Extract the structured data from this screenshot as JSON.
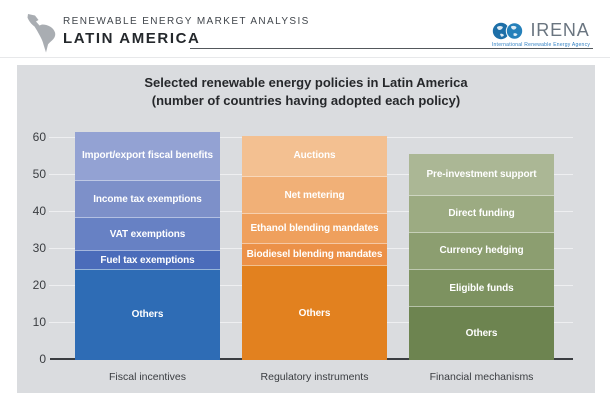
{
  "header": {
    "kicker": "RENEWABLE ENERGY MARKET ANALYSIS",
    "title": "LATIN AMERICA",
    "map_icon": "latin-america-map-icon",
    "logo": {
      "icon": "irena-globes-icon",
      "name": "IRENA",
      "tagline": "International Renewable Energy Agency"
    }
  },
  "colors": {
    "panel_bg": "#dadcdf",
    "axis": "#3a3d41",
    "header_rule": "#54585c",
    "logo_blue": "#1d6fa8",
    "logo_text": "#6a7580",
    "tagline_blue": "#2d7ec2",
    "map_gray": "#a9adb2"
  },
  "chart_data": {
    "type": "bar",
    "stacked": true,
    "title": "Selected renewable energy policies in Latin America",
    "subtitle": "(number of countries having adopted each policy)",
    "xlabel": "",
    "ylabel": "",
    "ylim": [
      0,
      60
    ],
    "yticks": [
      0,
      10,
      20,
      30,
      40,
      50,
      60
    ],
    "grid": true,
    "legend": "none",
    "categories": [
      "Fiscal incentives",
      "Regulatory instruments",
      "Financial mechanisms"
    ],
    "segments_order": "bottom-to-top",
    "bars": [
      {
        "category": "Fiscal incentives",
        "total": 61,
        "segments": [
          {
            "label": "Others",
            "value": 24,
            "color": "#2e6cb5"
          },
          {
            "label": "Fuel tax exemptions",
            "value": 5,
            "color": "#4b6cba"
          },
          {
            "label": "VAT exemptions",
            "value": 9,
            "color": "#6781c4"
          },
          {
            "label": "Income tax exemptions",
            "value": 10,
            "color": "#7d90c9"
          },
          {
            "label": "Import/export fiscal benefits",
            "value": 13,
            "color": "#93a2d3"
          }
        ]
      },
      {
        "category": "Regulatory instruments",
        "total": 60,
        "segments": [
          {
            "label": "Others",
            "value": 25,
            "color": "#e2811f"
          },
          {
            "label": "Biodiesel blending mandates",
            "value": 6,
            "color": "#ec9148"
          },
          {
            "label": "Ethanol blending mandates",
            "value": 8,
            "color": "#efa05d"
          },
          {
            "label": "Net metering",
            "value": 10,
            "color": "#f1b077"
          },
          {
            "label": "Auctions",
            "value": 11,
            "color": "#f3c091"
          }
        ]
      },
      {
        "category": "Financial mechanisms",
        "total": 55,
        "segments": [
          {
            "label": "Others",
            "value": 14,
            "color": "#6d8450"
          },
          {
            "label": "Eligible funds",
            "value": 10,
            "color": "#7d9260"
          },
          {
            "label": "Currency hedging",
            "value": 10,
            "color": "#8c9e70"
          },
          {
            "label": "Direct funding",
            "value": 10,
            "color": "#9cab82"
          },
          {
            "label": "Pre-investment support",
            "value": 11,
            "color": "#abb795"
          }
        ]
      }
    ]
  }
}
